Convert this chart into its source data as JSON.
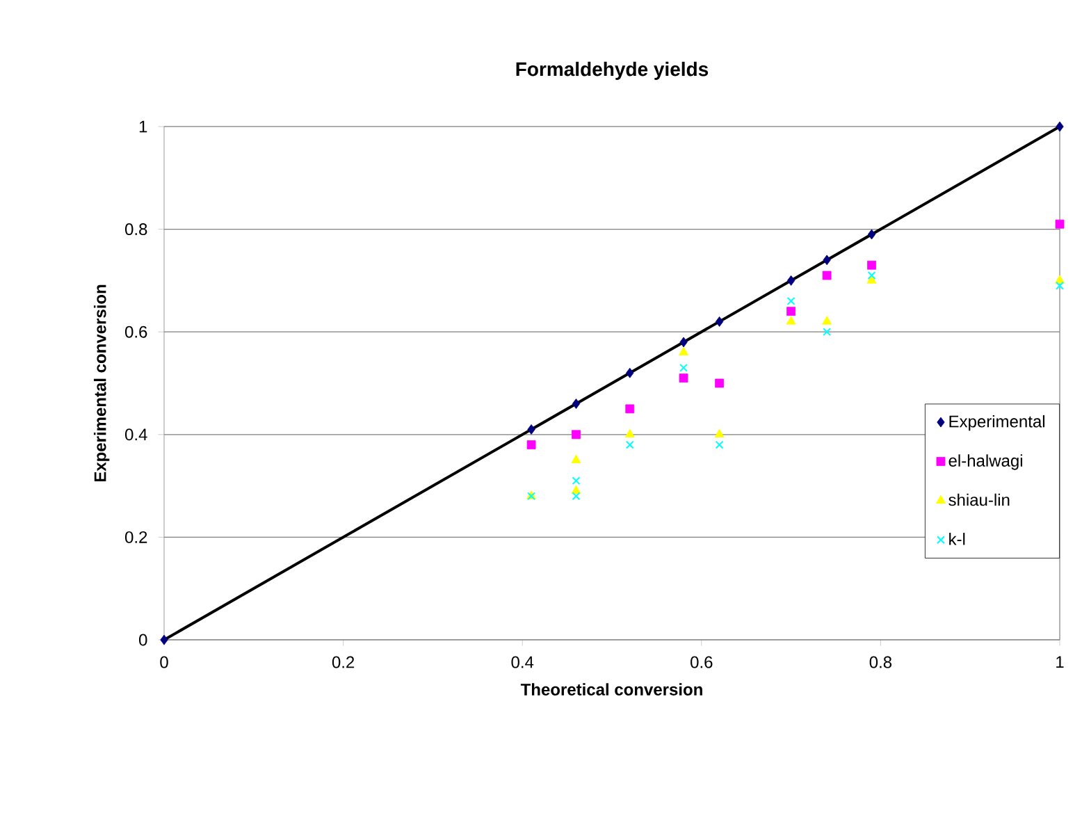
{
  "chart_data": {
    "type": "scatter",
    "title": "Formaldehyde yields",
    "xlabel": "Theoretical conversion",
    "ylabel": "Experimental conversion",
    "xlim": [
      0,
      1
    ],
    "ylim": [
      0,
      1
    ],
    "xticks": [
      0,
      0.2,
      0.4,
      0.6,
      0.8,
      1
    ],
    "yticks": [
      0,
      0.2,
      0.4,
      0.6,
      0.8,
      1
    ],
    "grid": "y",
    "legend": "right",
    "series": [
      {
        "type": "line",
        "color": "#000000",
        "marker": "none",
        "x": [
          0,
          1
        ],
        "values": [
          0,
          1
        ]
      },
      {
        "name": "Experimental",
        "color": "#000080",
        "marker": "diamond",
        "x": [
          0,
          0.41,
          0.46,
          0.52,
          0.58,
          0.62,
          0.7,
          0.74,
          0.79,
          1
        ],
        "values": [
          0,
          0.41,
          0.46,
          0.52,
          0.58,
          0.62,
          0.7,
          0.74,
          0.79,
          1
        ]
      },
      {
        "name": "el-halwagi",
        "color": "#ff00ff",
        "marker": "square",
        "x": [
          0.41,
          0.46,
          0.52,
          0.58,
          0.62,
          0.7,
          0.74,
          0.79,
          1
        ],
        "values": [
          0.38,
          0.4,
          0.45,
          0.51,
          0.5,
          0.64,
          0.71,
          0.73,
          0.81
        ]
      },
      {
        "name": "shiau-lin",
        "color": "#ffff00",
        "marker": "triangle",
        "x": [
          0.41,
          0.46,
          0.46,
          0.52,
          0.58,
          0.62,
          0.7,
          0.74,
          0.79,
          1
        ],
        "values": [
          0.28,
          0.35,
          0.29,
          0.4,
          0.56,
          0.4,
          0.62,
          0.62,
          0.7,
          0.7
        ]
      },
      {
        "name": "k-l",
        "color": "#00ffff",
        "marker": "cross",
        "x": [
          0.41,
          0.46,
          0.46,
          0.52,
          0.58,
          0.62,
          0.7,
          0.74,
          0.79,
          1
        ],
        "values": [
          0.28,
          0.31,
          0.28,
          0.38,
          0.53,
          0.38,
          0.66,
          0.6,
          0.71,
          0.69
        ]
      }
    ]
  }
}
